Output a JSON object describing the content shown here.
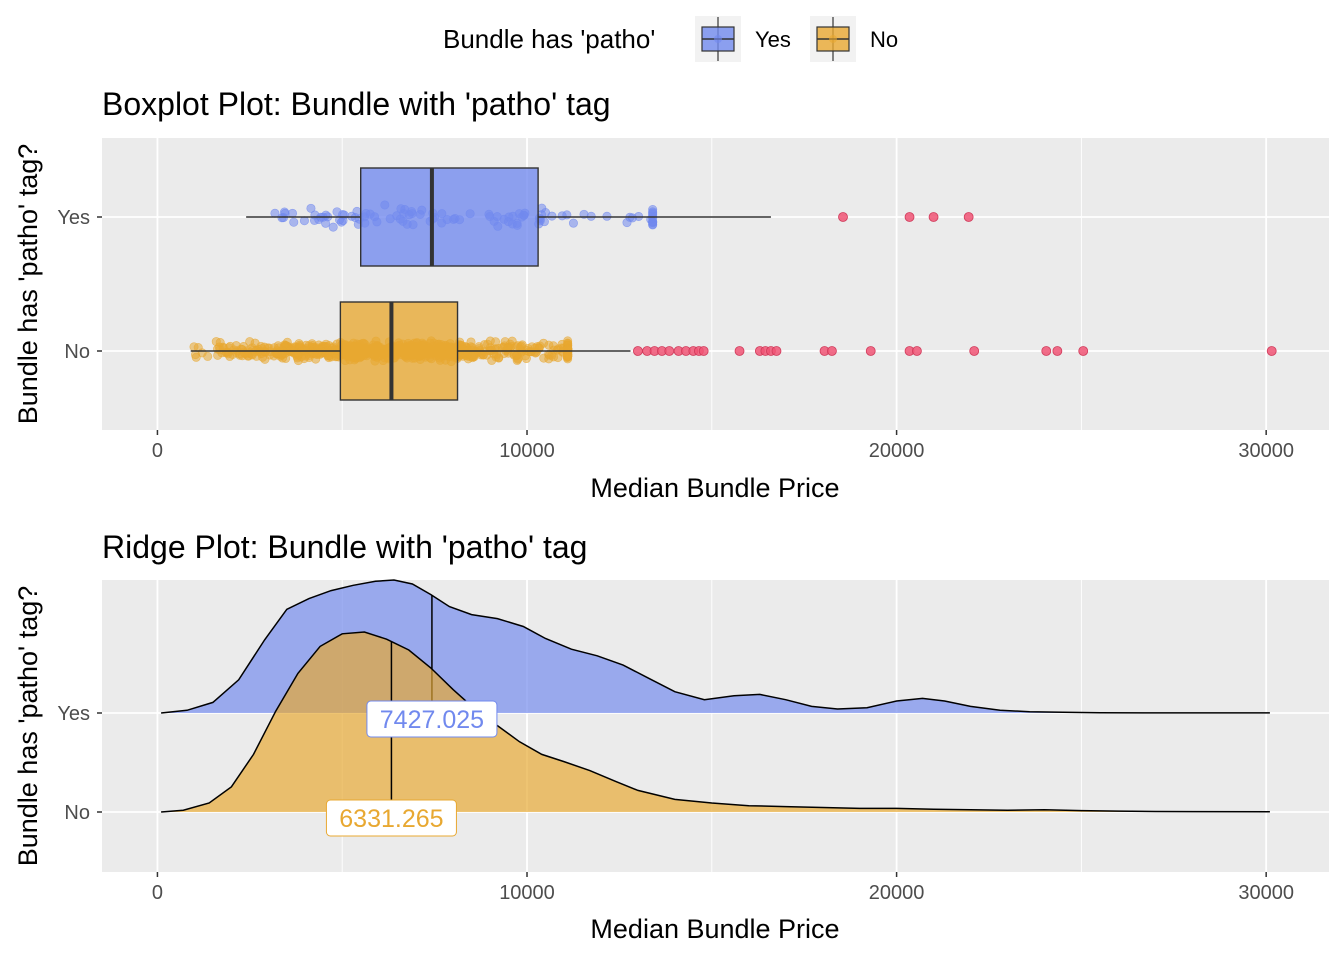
{
  "legend": {
    "title": "Bundle has 'patho'",
    "items": [
      {
        "label": "Yes",
        "color": "#7189ee"
      },
      {
        "label": "No",
        "color": "#e8a831"
      }
    ]
  },
  "chart_data": [
    {
      "type": "boxplot",
      "title": "Boxplot Plot: Bundle with 'patho' tag",
      "xlabel": "Median Bundle Price",
      "ylabel": "Bundle has 'patho' tag?",
      "xlim": [
        -1500,
        31700
      ],
      "x_ticks": [
        0,
        10000,
        20000,
        30000
      ],
      "x_tick_labels": [
        "0",
        "10000",
        "20000",
        "30000"
      ],
      "categories": [
        "Yes",
        "No"
      ],
      "outlier_color": "#f05474",
      "groups": [
        {
          "name": "Yes",
          "color": "#7189ee",
          "whisker_low": 2400,
          "q1": 5500,
          "median": 7427.025,
          "q3": 10300,
          "whisker_high": 16600,
          "outliers": [
            18550,
            20350,
            21000,
            21950
          ]
        },
        {
          "name": "No",
          "color": "#e8a831",
          "whisker_low": 900,
          "q1": 4950,
          "median": 6331.265,
          "q3": 8120,
          "whisker_high": 12800,
          "outliers": [
            13000,
            13250,
            13450,
            13650,
            13850,
            14100,
            14300,
            14500,
            14650,
            14780,
            15750,
            16300,
            16450,
            16600,
            16750,
            18050,
            18250,
            19300,
            20350,
            20550,
            22100,
            24050,
            24350,
            25050,
            30150
          ]
        }
      ]
    },
    {
      "type": "ridgeline",
      "title": "Ridge Plot: Bundle with 'patho' tag",
      "xlabel": "Median Bundle Price",
      "ylabel": "Bundle has 'patho' tag?",
      "xlim": [
        -1500,
        31700
      ],
      "x_ticks": [
        0,
        10000,
        20000,
        30000
      ],
      "x_tick_labels": [
        "0",
        "10000",
        "20000",
        "30000"
      ],
      "categories": [
        "Yes",
        "No"
      ],
      "series": [
        {
          "name": "Yes",
          "color": "#7189ee",
          "median": 7427.025,
          "median_label": "7427.025",
          "x": [
            100,
            800,
            1500,
            2200,
            2900,
            3500,
            4100,
            4700,
            5300,
            5900,
            6400,
            6900,
            7400,
            7900,
            8500,
            9200,
            9900,
            10500,
            11200,
            11900,
            12600,
            13300,
            14000,
            14800,
            15600,
            16300,
            17000,
            17700,
            18400,
            19200,
            20000,
            20700,
            21300,
            22000,
            22800,
            23600,
            24500,
            25500,
            27000,
            28500,
            30100
          ],
          "density": [
            0.0,
            0.02,
            0.08,
            0.25,
            0.55,
            0.78,
            0.86,
            0.92,
            0.96,
            0.99,
            1.0,
            0.97,
            0.89,
            0.8,
            0.74,
            0.71,
            0.65,
            0.56,
            0.48,
            0.43,
            0.36,
            0.26,
            0.16,
            0.1,
            0.13,
            0.14,
            0.1,
            0.05,
            0.03,
            0.04,
            0.09,
            0.11,
            0.09,
            0.05,
            0.02,
            0.01,
            0.005,
            0.002,
            0.001,
            0.001,
            0.001
          ]
        },
        {
          "name": "No",
          "color": "#e8a831",
          "median": 6331.265,
          "median_label": "6331.265",
          "x": [
            100,
            700,
            1400,
            2000,
            2600,
            3200,
            3800,
            4400,
            5000,
            5600,
            6200,
            6800,
            7400,
            8000,
            8600,
            9200,
            9800,
            10400,
            11000,
            11700,
            12400,
            13000,
            14000,
            15000,
            16000,
            17000,
            18000,
            19000,
            20000,
            21000,
            22000,
            23000,
            24000,
            25000,
            26000,
            27000,
            28000,
            30100
          ],
          "density": [
            0.0,
            0.01,
            0.05,
            0.14,
            0.32,
            0.56,
            0.77,
            0.92,
            0.99,
            1.0,
            0.96,
            0.9,
            0.8,
            0.68,
            0.57,
            0.48,
            0.39,
            0.32,
            0.28,
            0.23,
            0.17,
            0.12,
            0.07,
            0.05,
            0.035,
            0.03,
            0.025,
            0.02,
            0.02,
            0.015,
            0.012,
            0.01,
            0.012,
            0.008,
            0.005,
            0.003,
            0.002,
            0.001
          ]
        }
      ]
    }
  ]
}
